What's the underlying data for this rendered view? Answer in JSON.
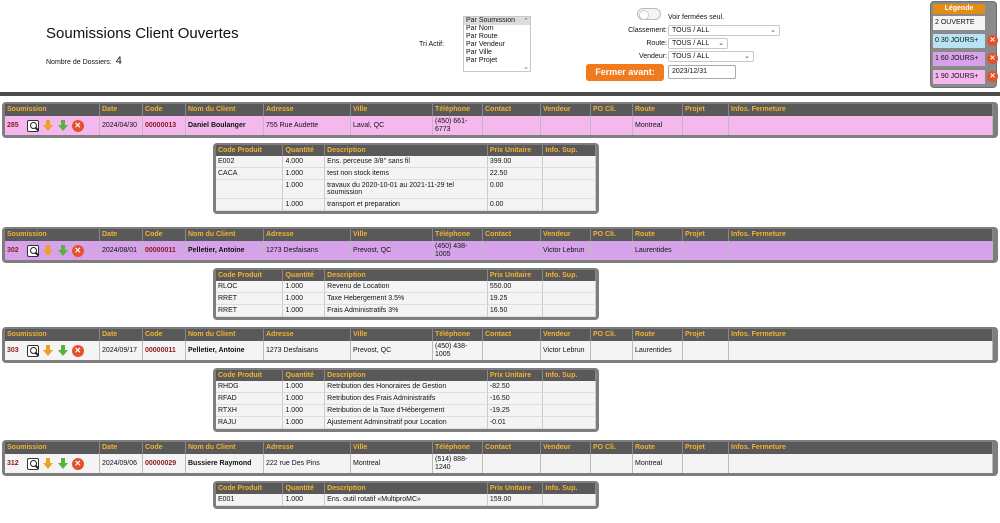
{
  "header": {
    "title": "Soumissions Client Ouvertes",
    "dossier_label": "Nombre de Dossiers:",
    "dossier_count": "4"
  },
  "tri": {
    "label": "Tri Actif:",
    "options": [
      "Par Soumission",
      "Par Nom",
      "Par Route",
      "Par Vendeur",
      "Par Ville",
      "Par Projet"
    ],
    "selected": "Par Soumission"
  },
  "filters": {
    "toggle_label": "Voir fermées seul.",
    "classement_label": "Classement:",
    "classement_value": "TOUS / ALL",
    "route_label": "Route:",
    "route_value": "TOUS / ALL",
    "vendeur_label": "Vendeur:",
    "vendeur_value": "TOUS / ALL",
    "fermer_button": "Fermer avant:",
    "fermer_date": "2023/12/31"
  },
  "legend": {
    "title": "Légende",
    "rows": [
      {
        "text": "2 OUVERTE",
        "color": "#f4f4f4",
        "x": ""
      },
      {
        "text": "0 30 JOURS+",
        "color": "#b7e3f5",
        "x": "✕"
      },
      {
        "text": "1 60 JOURS+",
        "color": "#d6a3ea",
        "x": "✕"
      },
      {
        "text": "1 90 JOURS+",
        "color": "#f5b8ee",
        "x": "✕"
      }
    ]
  },
  "quote_headers": [
    "Soumission",
    "Date",
    "Code",
    "Nom du Client",
    "Adresse",
    "Ville",
    "Téléphone",
    "Contact",
    "Vendeur",
    "PO Cli.",
    "Route",
    "Projet",
    "Infos. Fermeture"
  ],
  "line_headers": [
    "Code Produit",
    "Quantité",
    "Description",
    "Prix Unitaire",
    "Info. Sup."
  ],
  "quotes": [
    {
      "id": "285",
      "date": "2024/04/30",
      "code": "00000013",
      "client": "Daniel Boulanger",
      "adresse": "755 Rue Audette",
      "ville": "Laval, QC",
      "telephone": "(450) 661-6773",
      "contact": "",
      "vendeur": "",
      "po": "",
      "route": "Montreal",
      "projet": "",
      "infos": "",
      "lines": [
        {
          "code": "E002",
          "qty": "4.000",
          "desc": "Ens. perceuse 3/8'' sans fil",
          "prix": "399.00",
          "info": ""
        },
        {
          "code": "CACA",
          "qty": "1.000",
          "desc": "test non stock items",
          "prix": "22.50",
          "info": ""
        },
        {
          "code": "",
          "qty": "1.000",
          "desc": "travaux du 2020-10-01 au 2021-11-29 tel soumission",
          "prix": "0.00",
          "info": ""
        },
        {
          "code": "",
          "qty": "1.000",
          "desc": "transport et preparation",
          "prix": "0.00",
          "info": ""
        }
      ]
    },
    {
      "id": "302",
      "date": "2024/08/01",
      "code": "00000011",
      "client": "Pelletier, Antoine",
      "adresse": "1273 Desfaisans",
      "ville": "Prevost, QC",
      "telephone": "(450) 438-1005",
      "contact": "",
      "vendeur": "Victor Lebrun",
      "po": "",
      "route": "Laurentides",
      "projet": "",
      "infos": "",
      "lines": [
        {
          "code": "RLOC",
          "qty": "1.000",
          "desc": "Revenu de Location",
          "prix": "550.00",
          "info": ""
        },
        {
          "code": "RRET",
          "qty": "1.000",
          "desc": "Taxe Hebergement 3.5%",
          "prix": "19.25",
          "info": ""
        },
        {
          "code": "RRET",
          "qty": "1.000",
          "desc": "Frais Administratifs 3%",
          "prix": "16.50",
          "info": ""
        }
      ]
    },
    {
      "id": "303",
      "date": "2024/09/17",
      "code": "00000011",
      "client": "Pelletier, Antoine",
      "adresse": "1273 Desfaisans",
      "ville": "Prevost, QC",
      "telephone": "(450) 438-1005",
      "contact": "",
      "vendeur": "Victor Lebrun",
      "po": "",
      "route": "Laurentides",
      "projet": "",
      "infos": "",
      "lines": [
        {
          "code": "RHDG",
          "qty": "1.000",
          "desc": "Retribution des Honoraires de Gestion",
          "prix": "-82.50",
          "info": ""
        },
        {
          "code": "RFAD",
          "qty": "1.000",
          "desc": "Retribution des Frais Administratifs",
          "prix": "-16.50",
          "info": ""
        },
        {
          "code": "RTXH",
          "qty": "1.000",
          "desc": "Retribution de la Taxe d'Hébergement",
          "prix": "-19.25",
          "info": ""
        },
        {
          "code": "RAJU",
          "qty": "1.000",
          "desc": "Ajustement Adminsitratif pour Location",
          "prix": "-0.01",
          "info": ""
        }
      ]
    },
    {
      "id": "312",
      "date": "2024/09/06",
      "code": "00000029",
      "client": "Bussiere Raymond",
      "adresse": "222 rue Des Pins",
      "ville": "Montreal",
      "telephone": "(514) 888-1240",
      "contact": "",
      "vendeur": "",
      "po": "",
      "route": "Montreal",
      "projet": "",
      "infos": "",
      "lines": [
        {
          "code": "E001",
          "qty": "1.000",
          "desc": "Ens. outil rotatif «MultiproMC»",
          "prix": "159.00",
          "info": ""
        }
      ]
    }
  ]
}
